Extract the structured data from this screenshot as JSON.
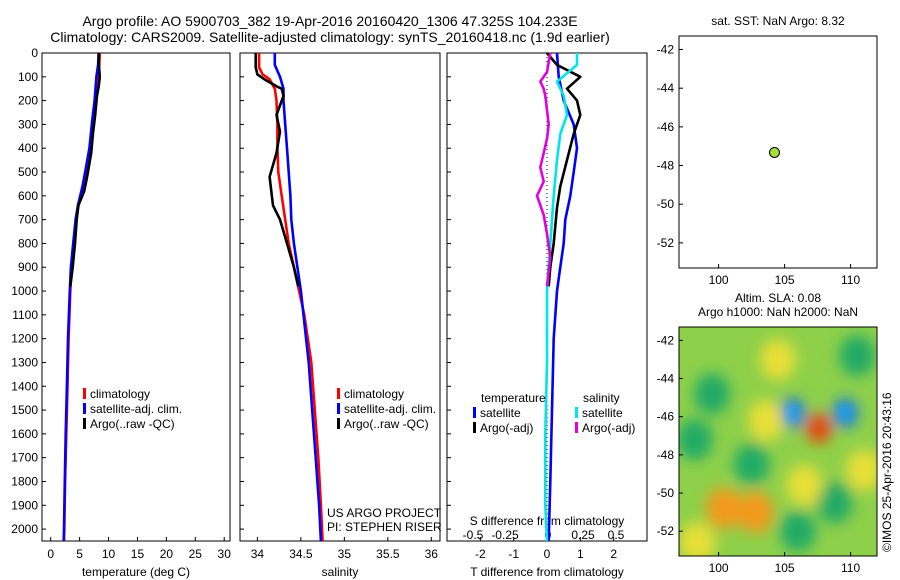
{
  "title_line1": "Argo profile: AO 5900703_382 19-Apr-2016 20160420_1306 47.325S 104.233E",
  "title_line2": "Climatology: CARS2009. Satellite-adjusted climatology: synTS_20160418.nc (1.9d earlier)",
  "watermark": "©IMOS 25-Apr-2016 20:43:16",
  "project_line1": "US ARGO PROJECT",
  "project_line2": "PI: STEPHEN RISER",
  "colors": {
    "climatology": "#ff0000",
    "satellite": "#0000ff",
    "argo": "#000000",
    "sat_diff": "#00e5e5",
    "argo_sal_diff": "#e000e0"
  },
  "chart_data": [
    {
      "type": "line",
      "xlabel": "temperature (deg C)",
      "ylim": [
        2050,
        0
      ],
      "xlim": [
        -1.5,
        31
      ],
      "xticks": [
        "0",
        "5",
        "10",
        "15",
        "20",
        "25",
        "30"
      ],
      "xtick_values": [
        0,
        5,
        10,
        15,
        20,
        25,
        30
      ],
      "yticks": [
        "0",
        "100",
        "200",
        "300",
        "400",
        "500",
        "600",
        "700",
        "800",
        "900",
        "1000",
        "1100",
        "1200",
        "1300",
        "1400",
        "1500",
        "1600",
        "1700",
        "1800",
        "1900",
        "2000"
      ],
      "legend": [
        "climatology",
        "satellite-adj. clim.",
        "Argo(..raw -QC)"
      ],
      "series": [
        {
          "name": "climatology",
          "color": "#ff0000",
          "points": [
            [
              8.5,
              0
            ],
            [
              8.4,
              50
            ],
            [
              8.1,
              100
            ],
            [
              7.7,
              200
            ],
            [
              7.4,
              280
            ],
            [
              6.9,
              400
            ],
            [
              6.4,
              480
            ],
            [
              5.7,
              560
            ],
            [
              4.8,
              640
            ],
            [
              4.4,
              700
            ],
            [
              4.0,
              800
            ],
            [
              3.6,
              900
            ],
            [
              3.4,
              1000
            ],
            [
              3.1,
              1200
            ],
            [
              2.9,
              1400
            ],
            [
              2.7,
              1600
            ],
            [
              2.5,
              1800
            ],
            [
              2.35,
              2000
            ],
            [
              2.3,
              2050
            ]
          ]
        },
        {
          "name": "satellite-adj. clim.",
          "color": "#0000ff",
          "points": [
            [
              8.3,
              0
            ],
            [
              8.2,
              50
            ],
            [
              7.9,
              100
            ],
            [
              7.6,
              200
            ],
            [
              7.2,
              280
            ],
            [
              6.7,
              400
            ],
            [
              6.1,
              480
            ],
            [
              5.5,
              560
            ],
            [
              4.7,
              640
            ],
            [
              4.3,
              700
            ],
            [
              3.9,
              800
            ],
            [
              3.5,
              900
            ],
            [
              3.3,
              1000
            ],
            [
              3.0,
              1200
            ],
            [
              2.8,
              1400
            ],
            [
              2.6,
              1600
            ],
            [
              2.45,
              1800
            ],
            [
              2.3,
              2000
            ],
            [
              2.25,
              2050
            ]
          ]
        },
        {
          "name": "Argo(..raw -QC)",
          "color": "#000000",
          "points": [
            [
              8.3,
              0
            ],
            [
              8.3,
              40
            ],
            [
              8.5,
              100
            ],
            [
              8.3,
              140
            ],
            [
              8.0,
              180
            ],
            [
              7.7,
              260
            ],
            [
              7.3,
              340
            ],
            [
              7.0,
              420
            ],
            [
              6.3,
              520
            ],
            [
              5.8,
              580
            ],
            [
              4.8,
              640
            ],
            [
              4.5,
              700
            ],
            [
              4.2,
              800
            ],
            [
              3.8,
              900
            ],
            [
              3.4,
              980
            ]
          ]
        }
      ]
    },
    {
      "type": "line",
      "xlabel": "salinity",
      "ylim": [
        2050,
        0
      ],
      "xlim": [
        33.8,
        36.1
      ],
      "xticks": [
        "34",
        "34.5",
        "35",
        "35.5",
        "36"
      ],
      "xtick_values": [
        34,
        34.5,
        35,
        35.5,
        36
      ],
      "legend": [
        "climatology",
        "satellite-adj. clim.",
        "Argo(..raw -QC)"
      ],
      "series": [
        {
          "name": "climatology",
          "color": "#ff0000",
          "points": [
            [
              34.02,
              0
            ],
            [
              34.02,
              60
            ],
            [
              34.06,
              90
            ],
            [
              34.14,
              110
            ],
            [
              34.2,
              150
            ],
            [
              34.22,
              200
            ],
            [
              34.23,
              300
            ],
            [
              34.23,
              400
            ],
            [
              34.24,
              500
            ],
            [
              34.28,
              600
            ],
            [
              34.32,
              700
            ],
            [
              34.36,
              800
            ],
            [
              34.42,
              900
            ],
            [
              34.48,
              1000
            ],
            [
              34.54,
              1100
            ],
            [
              34.58,
              1200
            ],
            [
              34.62,
              1300
            ],
            [
              34.66,
              1500
            ],
            [
              34.7,
              1700
            ],
            [
              34.73,
              1900
            ],
            [
              34.75,
              2050
            ]
          ]
        },
        {
          "name": "satellite-adj. clim.",
          "color": "#0000ff",
          "points": [
            [
              34.2,
              0
            ],
            [
              34.2,
              50
            ],
            [
              34.26,
              100
            ],
            [
              34.3,
              150
            ],
            [
              34.3,
              200
            ],
            [
              34.32,
              300
            ],
            [
              34.34,
              400
            ],
            [
              34.36,
              500
            ],
            [
              34.38,
              600
            ],
            [
              34.39,
              700
            ],
            [
              34.42,
              800
            ],
            [
              34.46,
              900
            ],
            [
              34.5,
              1000
            ],
            [
              34.53,
              1100
            ],
            [
              34.56,
              1200
            ],
            [
              34.59,
              1300
            ],
            [
              34.63,
              1500
            ],
            [
              34.67,
              1700
            ],
            [
              34.71,
              1900
            ],
            [
              34.73,
              2050
            ]
          ]
        },
        {
          "name": "Argo(..raw -QC)",
          "color": "#000000",
          "points": [
            [
              33.98,
              0
            ],
            [
              33.98,
              60
            ],
            [
              34.0,
              90
            ],
            [
              34.08,
              110
            ],
            [
              34.22,
              140
            ],
            [
              34.28,
              150
            ],
            [
              34.3,
              180
            ],
            [
              34.22,
              260
            ],
            [
              34.26,
              330
            ],
            [
              34.22,
              420
            ],
            [
              34.14,
              520
            ],
            [
              34.16,
              580
            ],
            [
              34.18,
              640
            ],
            [
              34.26,
              700
            ],
            [
              34.34,
              800
            ],
            [
              34.42,
              900
            ],
            [
              34.47,
              980
            ]
          ]
        }
      ]
    },
    {
      "type": "line",
      "legend_group_titles": [
        "temperature",
        "salinity"
      ],
      "legend": [
        "satellite",
        "Argo(-adj)",
        "satellite",
        "Argo(-adj)"
      ],
      "xlabel": "T difference from climatology",
      "xlim": [
        -3,
        3
      ],
      "xticks": [
        "-2",
        "-1",
        "0",
        "1",
        "2"
      ],
      "xtick_values": [
        -2,
        -1,
        0,
        1,
        2
      ],
      "top_axis_label": "S difference from climatology",
      "top_ticks": [
        "-0.5",
        "-0.25",
        "0",
        "0.25",
        "0.5"
      ],
      "ylim": [
        2050,
        0
      ],
      "series": [
        {
          "name": "temperature satellite",
          "color": "#0000ff",
          "points": [
            [
              0.3,
              0
            ],
            [
              0.35,
              100
            ],
            [
              0.5,
              200
            ],
            [
              0.8,
              300
            ],
            [
              0.9,
              400
            ],
            [
              0.8,
              500
            ],
            [
              0.7,
              600
            ],
            [
              0.55,
              700
            ],
            [
              0.5,
              800
            ],
            [
              0.4,
              900
            ],
            [
              0.3,
              1000
            ],
            [
              0.2,
              1200
            ],
            [
              0.15,
              1500
            ],
            [
              0.1,
              1800
            ],
            [
              0.05,
              2050
            ]
          ]
        },
        {
          "name": "temperature Argo(-adj)",
          "color": "#000000",
          "points": [
            [
              0.0,
              0
            ],
            [
              0.3,
              50
            ],
            [
              1.0,
              100
            ],
            [
              0.6,
              150
            ],
            [
              0.9,
              200
            ],
            [
              1.0,
              260
            ],
            [
              0.8,
              340
            ],
            [
              0.6,
              450
            ],
            [
              0.4,
              560
            ],
            [
              0.3,
              650
            ],
            [
              0.2,
              800
            ],
            [
              0.1,
              900
            ],
            [
              0.05,
              980
            ]
          ]
        },
        {
          "name": "salinity satellite",
          "color": "#00e5e5",
          "points": [
            [
              0.9,
              0
            ],
            [
              0.9,
              50
            ],
            [
              0.3,
              120
            ],
            [
              0.5,
              180
            ],
            [
              0.6,
              260
            ],
            [
              0.4,
              340
            ],
            [
              0.3,
              450
            ],
            [
              0.2,
              600
            ],
            [
              0.1,
              800
            ],
            [
              0.0,
              1000
            ],
            [
              0.0,
              1300
            ],
            [
              -0.05,
              1600
            ],
            [
              -0.05,
              1900
            ],
            [
              0.0,
              2050
            ]
          ]
        },
        {
          "name": "salinity Argo(-adj)",
          "color": "#e000e0",
          "points": [
            [
              0.1,
              0
            ],
            [
              0.0,
              80
            ],
            [
              -0.2,
              120
            ],
            [
              -0.1,
              150
            ],
            [
              -0.05,
              180
            ],
            [
              0.0,
              240
            ],
            [
              0.05,
              300
            ],
            [
              0.0,
              360
            ],
            [
              -0.1,
              420
            ],
            [
              -0.2,
              480
            ],
            [
              -0.1,
              540
            ],
            [
              -0.3,
              600
            ],
            [
              -0.1,
              680
            ],
            [
              0.0,
              760
            ],
            [
              0.1,
              860
            ],
            [
              0.0,
              980
            ]
          ]
        }
      ]
    },
    {
      "type": "scatter",
      "title": "sat. SST: NaN Argo: 8.32",
      "xlim": [
        97,
        112
      ],
      "ylim": [
        -53.3,
        -41.3
      ],
      "xticks": [
        "100",
        "105",
        "110"
      ],
      "xtick_values": [
        100,
        105,
        110
      ],
      "yticks": [
        "-42",
        "-44",
        "-46",
        "-48",
        "-50",
        "-52"
      ],
      "ytick_values": [
        -42,
        -44,
        -46,
        -48,
        -50,
        -52
      ],
      "points": [
        {
          "x": 104.233,
          "y": -47.325,
          "color": "#a6dc3c"
        }
      ]
    },
    {
      "type": "heatmap",
      "title_line1": "Altim. SLA: 0.08",
      "title_line2": "Argo h1000: NaN h2000: NaN",
      "xlim": [
        97,
        112
      ],
      "ylim": [
        -53.3,
        -41.3
      ],
      "xticks": [
        "100",
        "105",
        "110"
      ],
      "xtick_values": [
        100,
        105,
        110
      ],
      "yticks": [
        "-42",
        "-44",
        "-46",
        "-48",
        "-50",
        "-52"
      ],
      "ytick_values": [
        -42,
        -44,
        -46,
        -48,
        -50,
        -52
      ],
      "features": [
        {
          "x": 105.6,
          "y": -45.8,
          "value": -1.0
        },
        {
          "x": 109.6,
          "y": -45.8,
          "value": -1.0
        },
        {
          "x": 107.6,
          "y": -46.6,
          "value": 0.9
        },
        {
          "x": 103.6,
          "y": -46.2,
          "value": 0.4
        },
        {
          "x": 100.4,
          "y": -50.8,
          "value": 0.7
        },
        {
          "x": 102.8,
          "y": -51.0,
          "value": 0.6
        },
        {
          "x": 99.5,
          "y": -44.8,
          "value": -0.5
        },
        {
          "x": 102.5,
          "y": -48.5,
          "value": -0.4
        },
        {
          "x": 108.8,
          "y": -50.5,
          "value": -0.5
        },
        {
          "x": 106.0,
          "y": -52.0,
          "value": -0.35
        },
        {
          "x": 110.5,
          "y": -42.8,
          "value": -0.4
        },
        {
          "x": 98.2,
          "y": -47.2,
          "value": -0.45
        },
        {
          "x": 104.5,
          "y": -43.0,
          "value": 0.25
        },
        {
          "x": 111.0,
          "y": -48.8,
          "value": 0.3
        },
        {
          "x": 98.4,
          "y": -52.6,
          "value": 0.35
        },
        {
          "x": 106.5,
          "y": -49.6,
          "value": 0.2
        }
      ]
    }
  ]
}
